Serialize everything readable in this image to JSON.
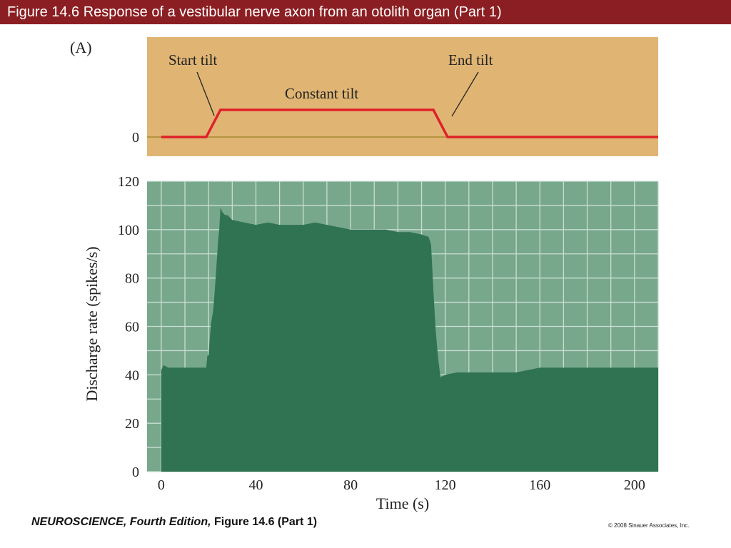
{
  "header": {
    "title": "Figure 14.6  Response of a vestibular nerve axon from an otolith organ (Part 1)"
  },
  "footer": {
    "book": "NEUROSCIENCE, Fourth Edition,",
    "figure_ref": "Figure 14.6 (Part 1)",
    "copyright": "© 2008 Sinauer Associates, Inc."
  },
  "colors": {
    "title_bar": "#8b1e22",
    "stimulus_bg": "#e0b573",
    "stimulus_line": "#e0202a",
    "baseline_line": "#a88a30",
    "plot_bg": "#78a88c",
    "grid": "#c9ddd2",
    "area_fill": "#2f7352"
  },
  "chart_data": [
    {
      "type": "line",
      "panel_label": "(A)",
      "annotations": [
        "Start tilt",
        "Constant tilt",
        "End tilt"
      ],
      "ytick_labels": [
        "0"
      ],
      "x": [
        0,
        19,
        25,
        115,
        121,
        210
      ],
      "y": [
        0,
        0,
        1,
        1,
        0,
        0
      ]
    },
    {
      "type": "area",
      "xlabel": "Time (s)",
      "ylabel": "Discharge rate (spikes/s)",
      "xlim": [
        -6,
        210
      ],
      "ylim": [
        0,
        120
      ],
      "xticks": [
        0,
        40,
        80,
        120,
        160,
        200
      ],
      "yticks": [
        0,
        20,
        40,
        60,
        80,
        100,
        120
      ],
      "grid": true,
      "x": [
        0,
        1,
        3,
        19,
        19.5,
        20,
        21,
        22,
        23,
        24,
        24.5,
        25,
        26,
        27,
        28,
        30,
        35,
        40,
        45,
        50,
        55,
        60,
        65,
        70,
        75,
        80,
        85,
        90,
        95,
        100,
        105,
        110,
        113,
        114,
        115,
        116,
        117,
        118,
        120,
        125,
        130,
        140,
        150,
        160,
        170,
        180,
        190,
        200,
        210
      ],
      "y": [
        42,
        44,
        43,
        43,
        48,
        48,
        61,
        67,
        80,
        95,
        100,
        109,
        107,
        106,
        106,
        104,
        103,
        102,
        103,
        102,
        102,
        102,
        103,
        102,
        101,
        100,
        100,
        100,
        100,
        99,
        99,
        98,
        97,
        94,
        75,
        58,
        47,
        39,
        40,
        41,
        41,
        41,
        41,
        43,
        43,
        43,
        43,
        43,
        43
      ]
    }
  ]
}
